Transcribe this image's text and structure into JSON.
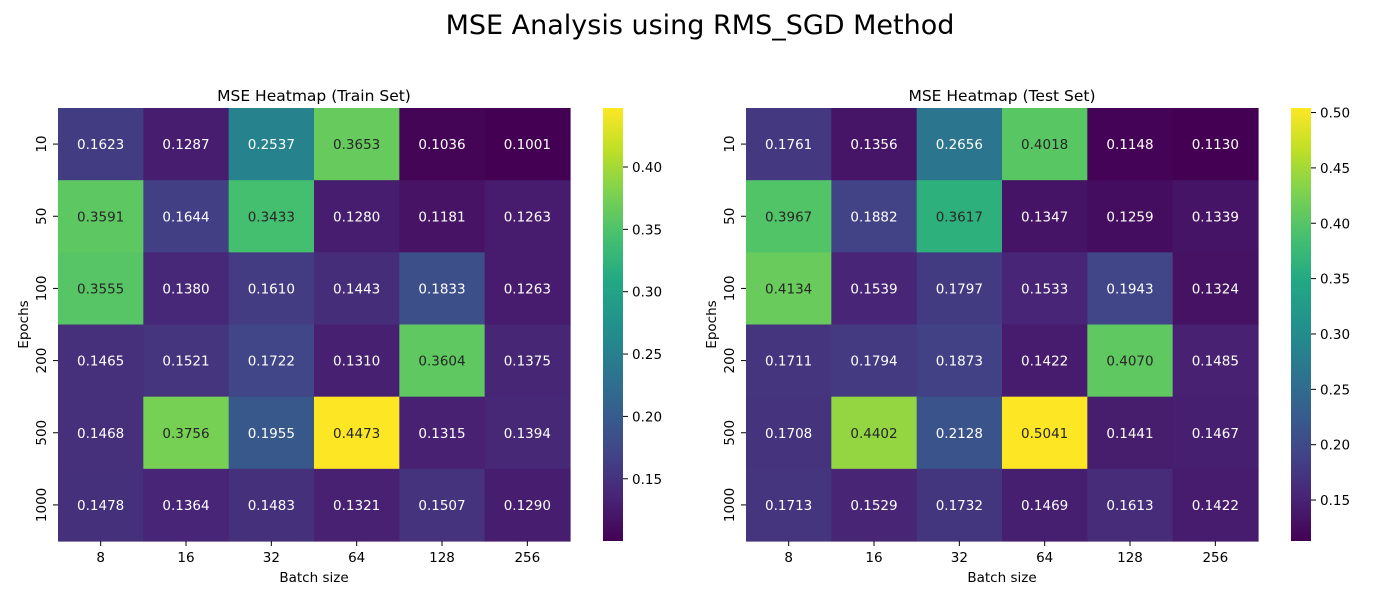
{
  "figure": {
    "suptitle": "MSE Analysis using RMS_SGD Method"
  },
  "chart_data": [
    {
      "type": "heatmap",
      "title": "MSE Heatmap (Train Set)",
      "xlabel": "Batch size",
      "ylabel": "Epochs",
      "x_categories": [
        "8",
        "16",
        "32",
        "64",
        "128",
        "256"
      ],
      "y_categories": [
        "10",
        "50",
        "100",
        "200",
        "500",
        "1000"
      ],
      "values": [
        [
          0.1623,
          0.1287,
          0.2537,
          0.3653,
          0.1036,
          0.1001
        ],
        [
          0.3591,
          0.1644,
          0.3433,
          0.128,
          0.1181,
          0.1263
        ],
        [
          0.3555,
          0.138,
          0.161,
          0.1443,
          0.1833,
          0.1263
        ],
        [
          0.1465,
          0.1521,
          0.1722,
          0.131,
          0.3604,
          0.1375
        ],
        [
          0.1468,
          0.3756,
          0.1955,
          0.4473,
          0.1315,
          0.1394
        ],
        [
          0.1478,
          0.1364,
          0.1483,
          0.1321,
          0.1507,
          0.129
        ]
      ],
      "value_format_decimals": 4,
      "colormap": "viridis",
      "colorbar": {
        "min": 0.1001,
        "max": 0.4473,
        "ticks": [
          0.15,
          0.2,
          0.25,
          0.3,
          0.35,
          0.4
        ],
        "tick_labels": [
          "0.15",
          "0.20",
          "0.25",
          "0.30",
          "0.35",
          "0.40"
        ]
      },
      "grid": false
    },
    {
      "type": "heatmap",
      "title": "MSE Heatmap (Test Set)",
      "xlabel": "Batch size",
      "ylabel": "Epochs",
      "x_categories": [
        "8",
        "16",
        "32",
        "64",
        "128",
        "256"
      ],
      "y_categories": [
        "10",
        "50",
        "100",
        "200",
        "500",
        "1000"
      ],
      "values": [
        [
          0.1761,
          0.1356,
          0.2656,
          0.4018,
          0.1148,
          0.113
        ],
        [
          0.3967,
          0.1882,
          0.3617,
          0.1347,
          0.1259,
          0.1339
        ],
        [
          0.4134,
          0.1539,
          0.1797,
          0.1533,
          0.1943,
          0.1324
        ],
        [
          0.1711,
          0.1794,
          0.1873,
          0.1422,
          0.407,
          0.1485
        ],
        [
          0.1708,
          0.4402,
          0.2128,
          0.5041,
          0.1441,
          0.1467
        ],
        [
          0.1713,
          0.1529,
          0.1732,
          0.1469,
          0.1613,
          0.1422
        ]
      ],
      "value_format_decimals": 4,
      "colormap": "viridis",
      "colorbar": {
        "min": 0.113,
        "max": 0.5041,
        "ticks": [
          0.15,
          0.2,
          0.25,
          0.3,
          0.35,
          0.4,
          0.45,
          0.5
        ],
        "tick_labels": [
          "0.15",
          "0.20",
          "0.25",
          "0.30",
          "0.35",
          "0.40",
          "0.45",
          "0.50"
        ]
      },
      "grid": false
    }
  ]
}
